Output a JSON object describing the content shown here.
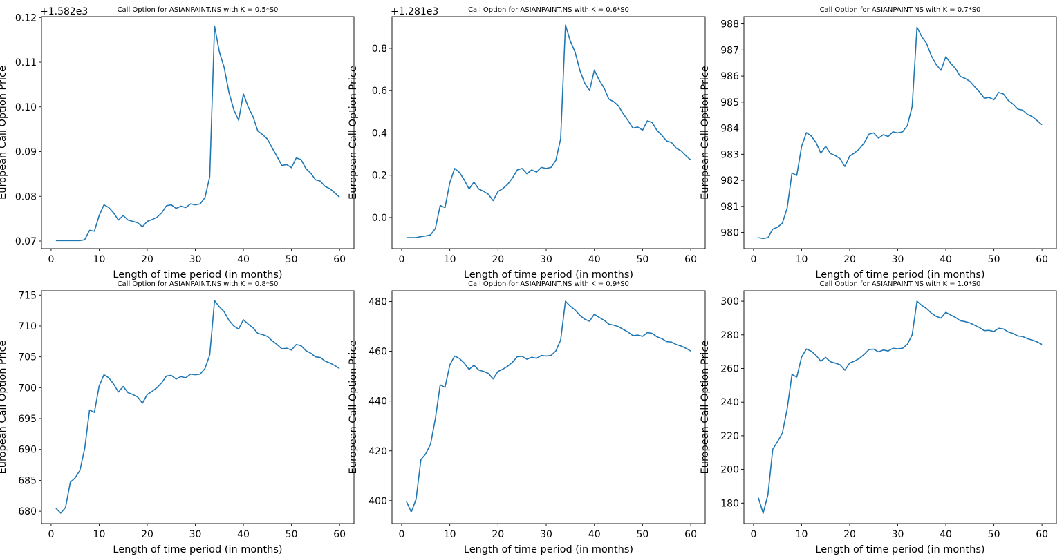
{
  "figure": {
    "line_color": "#1f77b4",
    "background": "#ffffff"
  },
  "chart_data": [
    {
      "type": "line",
      "title": "Call Option for ASIANPAINT.NS with K = 0.5*S0",
      "xlabel": "Length of time period (in months)",
      "ylabel": "European Call Option Price",
      "offset_text": "+1.582e3",
      "xlim": [
        -2,
        63
      ],
      "ylim": [
        0.0683,
        0.1202
      ],
      "xticks": [
        0,
        10,
        20,
        30,
        40,
        50,
        60
      ],
      "xtick_labels": [
        "0",
        "10",
        "20",
        "30",
        "40",
        "50",
        "60"
      ],
      "yticks": [
        0.07,
        0.08,
        0.09,
        0.1,
        0.11,
        0.12
      ],
      "ytick_labels": [
        "0.07",
        "0.08",
        "0.09",
        "0.10",
        "0.11",
        "0.12"
      ],
      "x": [
        1,
        2,
        3,
        4,
        5,
        6,
        7,
        8,
        9,
        10,
        11,
        12,
        13,
        14,
        15,
        16,
        17,
        18,
        19,
        20,
        21,
        22,
        23,
        24,
        25,
        26,
        27,
        28,
        29,
        30,
        31,
        32,
        33,
        34,
        35,
        36,
        37,
        38,
        39,
        40,
        41,
        42,
        43,
        44,
        45,
        46,
        47,
        48,
        49,
        50,
        51,
        52,
        53,
        54,
        55,
        56,
        57,
        58,
        59,
        60
      ],
      "y": [
        0.0701,
        0.0701,
        0.0701,
        0.0701,
        0.0701,
        0.0701,
        0.0703,
        0.0724,
        0.0722,
        0.0757,
        0.0781,
        0.0775,
        0.0763,
        0.0747,
        0.0757,
        0.0747,
        0.0744,
        0.0741,
        0.0732,
        0.0744,
        0.0748,
        0.0753,
        0.0763,
        0.0779,
        0.0781,
        0.0773,
        0.0778,
        0.0775,
        0.0783,
        0.0781,
        0.0783,
        0.0797,
        0.0844,
        0.1181,
        0.1123,
        0.1088,
        0.1032,
        0.0994,
        0.097,
        0.1029,
        0.1,
        0.0978,
        0.0946,
        0.0938,
        0.0928,
        0.0908,
        0.0889,
        0.0869,
        0.0871,
        0.0864,
        0.0886,
        0.0882,
        0.0862,
        0.0852,
        0.0837,
        0.0834,
        0.0822,
        0.0817,
        0.0808,
        0.0798
      ]
    },
    {
      "type": "line",
      "title": "Call Option for ASIANPAINT.NS with K = 0.6*S0",
      "xlabel": "Length of time period (in months)",
      "ylabel": "European Call Option Price",
      "offset_text": "+1.281e3",
      "xlim": [
        -2,
        63
      ],
      "ylim": [
        -0.147,
        0.95
      ],
      "xticks": [
        0,
        10,
        20,
        30,
        40,
        50,
        60
      ],
      "xtick_labels": [
        "0",
        "10",
        "20",
        "30",
        "40",
        "50",
        "60"
      ],
      "yticks": [
        0.0,
        0.2,
        0.4,
        0.6,
        0.8
      ],
      "ytick_labels": [
        "0.0",
        "0.2",
        "0.4",
        "0.6",
        "0.8"
      ],
      "x": [
        1,
        2,
        3,
        4,
        5,
        6,
        7,
        8,
        9,
        10,
        11,
        12,
        13,
        14,
        15,
        16,
        17,
        18,
        19,
        20,
        21,
        22,
        23,
        24,
        25,
        26,
        27,
        28,
        29,
        30,
        31,
        32,
        33,
        34,
        35,
        36,
        37,
        38,
        39,
        40,
        41,
        42,
        43,
        44,
        45,
        46,
        47,
        48,
        49,
        50,
        51,
        52,
        53,
        54,
        55,
        56,
        57,
        58,
        59,
        60
      ],
      "y": [
        -0.095,
        -0.095,
        -0.095,
        -0.09,
        -0.087,
        -0.082,
        -0.052,
        0.057,
        0.047,
        0.165,
        0.232,
        0.213,
        0.178,
        0.135,
        0.168,
        0.135,
        0.124,
        0.11,
        0.08,
        0.123,
        0.137,
        0.157,
        0.187,
        0.225,
        0.232,
        0.207,
        0.225,
        0.215,
        0.237,
        0.232,
        0.237,
        0.27,
        0.372,
        0.91,
        0.835,
        0.782,
        0.695,
        0.635,
        0.6,
        0.697,
        0.65,
        0.613,
        0.56,
        0.548,
        0.528,
        0.49,
        0.458,
        0.423,
        0.428,
        0.413,
        0.457,
        0.449,
        0.412,
        0.389,
        0.362,
        0.355,
        0.328,
        0.315,
        0.292,
        0.272
      ]
    },
    {
      "type": "line",
      "title": "Call Option for ASIANPAINT.NS with K = 0.7*S0",
      "xlabel": "Length of time period (in months)",
      "ylabel": "European Call Option Price",
      "offset_text": "",
      "xlim": [
        -2,
        63
      ],
      "ylim": [
        979.38,
        988.28
      ],
      "xticks": [
        0,
        10,
        20,
        30,
        40,
        50,
        60
      ],
      "xtick_labels": [
        "0",
        "10",
        "20",
        "30",
        "40",
        "50",
        "60"
      ],
      "yticks": [
        980,
        981,
        982,
        983,
        984,
        985,
        986,
        987,
        988
      ],
      "ytick_labels": [
        "980",
        "981",
        "982",
        "983",
        "984",
        "985",
        "986",
        "987",
        "988"
      ],
      "x": [
        1,
        2,
        3,
        4,
        5,
        6,
        7,
        8,
        9,
        10,
        11,
        12,
        13,
        14,
        15,
        16,
        17,
        18,
        19,
        20,
        21,
        22,
        23,
        24,
        25,
        26,
        27,
        28,
        29,
        30,
        31,
        32,
        33,
        34,
        35,
        36,
        37,
        38,
        39,
        40,
        41,
        42,
        43,
        44,
        45,
        46,
        47,
        48,
        49,
        50,
        51,
        52,
        53,
        54,
        55,
        56,
        57,
        58,
        59,
        60
      ],
      "y": [
        979.8,
        979.77,
        979.8,
        980.13,
        980.2,
        980.36,
        980.94,
        982.28,
        982.19,
        983.3,
        983.83,
        983.7,
        983.45,
        983.04,
        983.3,
        983.03,
        982.95,
        982.83,
        982.53,
        982.93,
        983.05,
        983.2,
        983.43,
        983.77,
        983.82,
        983.62,
        983.75,
        983.68,
        983.86,
        983.82,
        983.86,
        984.1,
        984.83,
        987.87,
        987.51,
        987.25,
        986.77,
        986.44,
        986.22,
        986.74,
        986.49,
        986.29,
        985.99,
        985.91,
        985.8,
        985.59,
        985.39,
        985.15,
        985.18,
        985.09,
        985.37,
        985.31,
        985.06,
        984.92,
        984.73,
        984.69,
        984.53,
        984.44,
        984.29,
        984.13
      ]
    },
    {
      "type": "line",
      "title": "Call Option for ASIANPAINT.NS with K = 0.8*S0",
      "xlabel": "Length of time period (in months)",
      "ylabel": "European Call Option Price",
      "offset_text": "",
      "xlim": [
        -2,
        63
      ],
      "ylim": [
        678.0,
        715.7
      ],
      "xticks": [
        0,
        10,
        20,
        30,
        40,
        50,
        60
      ],
      "xtick_labels": [
        "0",
        "10",
        "20",
        "30",
        "40",
        "50",
        "60"
      ],
      "yticks": [
        680,
        685,
        690,
        695,
        700,
        705,
        710,
        715
      ],
      "ytick_labels": [
        "680",
        "685",
        "690",
        "695",
        "700",
        "705",
        "710",
        "715"
      ],
      "x": [
        1,
        2,
        3,
        4,
        5,
        6,
        7,
        8,
        9,
        10,
        11,
        12,
        13,
        14,
        15,
        16,
        17,
        18,
        19,
        20,
        21,
        22,
        23,
        24,
        25,
        26,
        27,
        28,
        29,
        30,
        31,
        32,
        33,
        34,
        35,
        36,
        37,
        38,
        39,
        40,
        41,
        42,
        43,
        44,
        45,
        46,
        47,
        48,
        49,
        50,
        51,
        52,
        53,
        54,
        55,
        56,
        57,
        58,
        59,
        60
      ],
      "y": [
        680.5,
        679.7,
        680.6,
        684.7,
        685.4,
        686.6,
        690.2,
        696.4,
        696.0,
        700.3,
        702.1,
        701.6,
        700.6,
        699.3,
        700.2,
        699.2,
        698.9,
        698.5,
        697.5,
        698.9,
        699.4,
        700.0,
        700.8,
        701.9,
        702.0,
        701.4,
        701.8,
        701.6,
        702.2,
        702.1,
        702.2,
        703.1,
        705.3,
        714.1,
        713.1,
        712.3,
        710.9,
        710.0,
        709.5,
        711.0,
        710.3,
        709.7,
        708.8,
        708.6,
        708.3,
        707.6,
        707.0,
        706.3,
        706.4,
        706.1,
        707.0,
        706.8,
        706.0,
        705.6,
        705.0,
        704.9,
        704.3,
        704.0,
        703.6,
        703.1
      ]
    },
    {
      "type": "line",
      "title": "Call Option for ASIANPAINT.NS with K = 0.9*S0",
      "xlabel": "Length of time period (in months)",
      "ylabel": "European Call Option Price",
      "offset_text": "",
      "xlim": [
        -2,
        63
      ],
      "ylim": [
        390.8,
        484.3
      ],
      "xticks": [
        0,
        10,
        20,
        30,
        40,
        50,
        60
      ],
      "xtick_labels": [
        "0",
        "10",
        "20",
        "30",
        "40",
        "50",
        "60"
      ],
      "yticks": [
        400,
        420,
        440,
        460,
        480
      ],
      "ytick_labels": [
        "400",
        "420",
        "440",
        "460",
        "480"
      ],
      "x": [
        1,
        2,
        3,
        4,
        5,
        6,
        7,
        8,
        9,
        10,
        11,
        12,
        13,
        14,
        15,
        16,
        17,
        18,
        19,
        20,
        21,
        22,
        23,
        24,
        25,
        26,
        27,
        28,
        29,
        30,
        31,
        32,
        33,
        34,
        35,
        36,
        37,
        38,
        39,
        40,
        41,
        42,
        43,
        44,
        45,
        46,
        47,
        48,
        49,
        50,
        51,
        52,
        53,
        54,
        55,
        56,
        57,
        58,
        59,
        60
      ],
      "y": [
        399.7,
        395.4,
        400.6,
        416.5,
        418.8,
        422.7,
        432.9,
        446.5,
        445.5,
        454.5,
        458.1,
        457.1,
        455.2,
        452.7,
        454.4,
        452.5,
        451.9,
        451.1,
        448.9,
        451.9,
        452.8,
        454.0,
        455.6,
        457.8,
        458.0,
        456.8,
        457.6,
        457.2,
        458.3,
        458.1,
        458.3,
        460.1,
        464.5,
        480.1,
        478.1,
        476.6,
        474.4,
        472.9,
        472.1,
        474.9,
        473.6,
        472.5,
        470.9,
        470.5,
        469.9,
        468.8,
        467.7,
        466.3,
        466.5,
        466.0,
        467.5,
        467.2,
        465.8,
        465.1,
        463.9,
        463.7,
        462.7,
        462.1,
        461.2,
        460.1
      ]
    },
    {
      "type": "line",
      "title": "Call Option for ASIANPAINT.NS with K = 1.0*S0",
      "xlabel": "Length of time period (in months)",
      "ylabel": "European Call Option Price",
      "offset_text": "",
      "xlim": [
        -2,
        63
      ],
      "ylim": [
        167.8,
        306.2
      ],
      "xticks": [
        0,
        10,
        20,
        30,
        40,
        50,
        60
      ],
      "xtick_labels": [
        "0",
        "10",
        "20",
        "30",
        "40",
        "50",
        "60"
      ],
      "yticks": [
        180,
        200,
        220,
        240,
        260,
        280,
        300
      ],
      "ytick_labels": [
        "180",
        "200",
        "220",
        "240",
        "260",
        "280",
        "300"
      ],
      "x": [
        1,
        2,
        3,
        4,
        5,
        6,
        7,
        8,
        9,
        10,
        11,
        12,
        13,
        14,
        15,
        16,
        17,
        18,
        19,
        20,
        21,
        22,
        23,
        24,
        25,
        26,
        27,
        28,
        29,
        30,
        31,
        32,
        33,
        34,
        35,
        36,
        37,
        38,
        39,
        40,
        41,
        42,
        43,
        44,
        45,
        46,
        47,
        48,
        49,
        50,
        51,
        52,
        53,
        54,
        55,
        56,
        57,
        58,
        59,
        60
      ],
      "y": [
        183.2,
        173.9,
        185.0,
        212.0,
        216.5,
        221.6,
        236.0,
        256.4,
        254.9,
        266.8,
        271.6,
        270.3,
        267.8,
        264.3,
        266.6,
        264.0,
        263.2,
        262.2,
        259.0,
        263.2,
        264.4,
        266.0,
        268.3,
        271.2,
        271.5,
        269.9,
        271.0,
        270.4,
        272.0,
        271.7,
        272.0,
        274.4,
        280.0,
        300.0,
        297.5,
        295.6,
        292.9,
        291.0,
        290.0,
        293.4,
        291.8,
        290.4,
        288.4,
        287.9,
        287.1,
        285.7,
        284.3,
        282.5,
        282.7,
        282.0,
        283.9,
        283.5,
        281.7,
        280.8,
        279.3,
        279.0,
        277.7,
        276.9,
        275.8,
        274.3
      ]
    }
  ]
}
